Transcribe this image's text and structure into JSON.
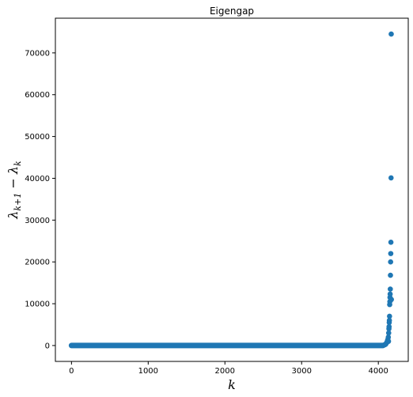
{
  "chart_data": {
    "type": "scatter",
    "title": "Eigengap",
    "xlabel": "k",
    "ylabel_text": "λ",
    "ylabel_sub1": "k+1",
    "ylabel_mid": " − λ",
    "ylabel_sub2": "k",
    "xlim": [
      -210,
      4390
    ],
    "ylim": [
      -3800,
      78300
    ],
    "xticks": [
      0,
      1000,
      2000,
      3000,
      4000
    ],
    "xtick_labels": [
      "0",
      "1000",
      "2000",
      "3000",
      "4000"
    ],
    "yticks": [
      0,
      10000,
      20000,
      30000,
      40000,
      50000,
      60000,
      70000
    ],
    "ytick_labels": [
      "0",
      "10000",
      "20000",
      "30000",
      "40000",
      "50000",
      "60000",
      "70000"
    ],
    "grid": false,
    "color": "#1f77b4",
    "baseline": {
      "x_start": 0,
      "x_end": 4060,
      "y": 0
    },
    "x": [
      4060,
      4075,
      4085,
      4095,
      4100,
      4110,
      4115,
      4120,
      4125,
      4130,
      4132,
      4135,
      4138,
      4140,
      4142,
      4144,
      4146,
      4148,
      4150,
      4152,
      4154,
      4156,
      4158,
      4160,
      4162,
      4164,
      4166,
      4168,
      4170
    ],
    "y": [
      50,
      120,
      200,
      300,
      450,
      700,
      900,
      1200,
      1500,
      2000,
      1000,
      3000,
      4000,
      4500,
      5500,
      6000,
      7000,
      9800,
      10500,
      11500,
      12300,
      13500,
      16800,
      20000,
      22000,
      24700,
      40100,
      74500,
      11000
    ]
  }
}
